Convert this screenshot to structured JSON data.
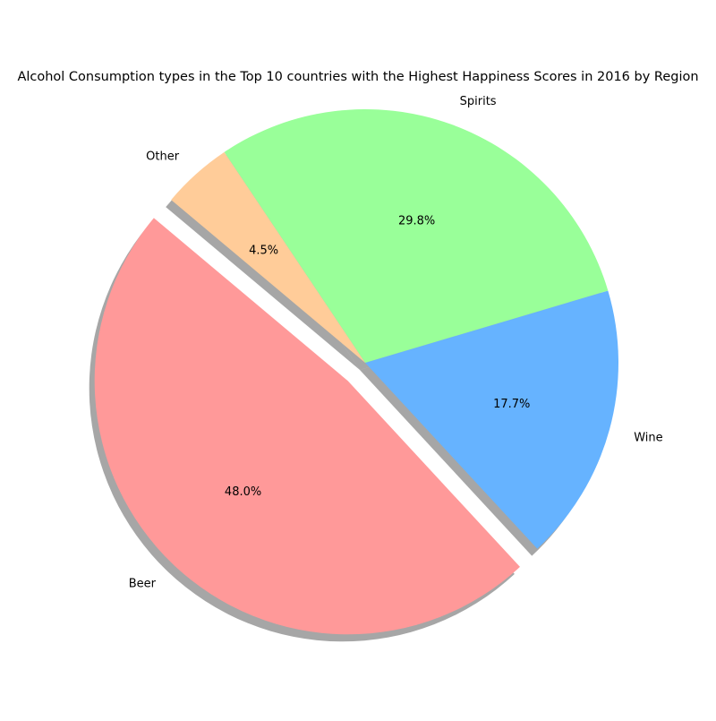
{
  "chart_data": {
    "type": "pie",
    "title": "Alcohol Consumption types in the Top 10 countries with the Highest Happiness Scores in 2016 by Region",
    "categories": [
      "Beer",
      "Wine",
      "Spirits",
      "Other"
    ],
    "values": [
      48.0,
      17.7,
      29.8,
      4.5
    ],
    "percent_labels": [
      "48.0%",
      "17.7%",
      "29.8%",
      "4.5%"
    ],
    "colors": [
      "#ff9999",
      "#66b3ff",
      "#99ff99",
      "#ffcc99"
    ],
    "exploded": "Beer",
    "shadow": true,
    "start_angle_deg": 140,
    "legend": "none"
  }
}
